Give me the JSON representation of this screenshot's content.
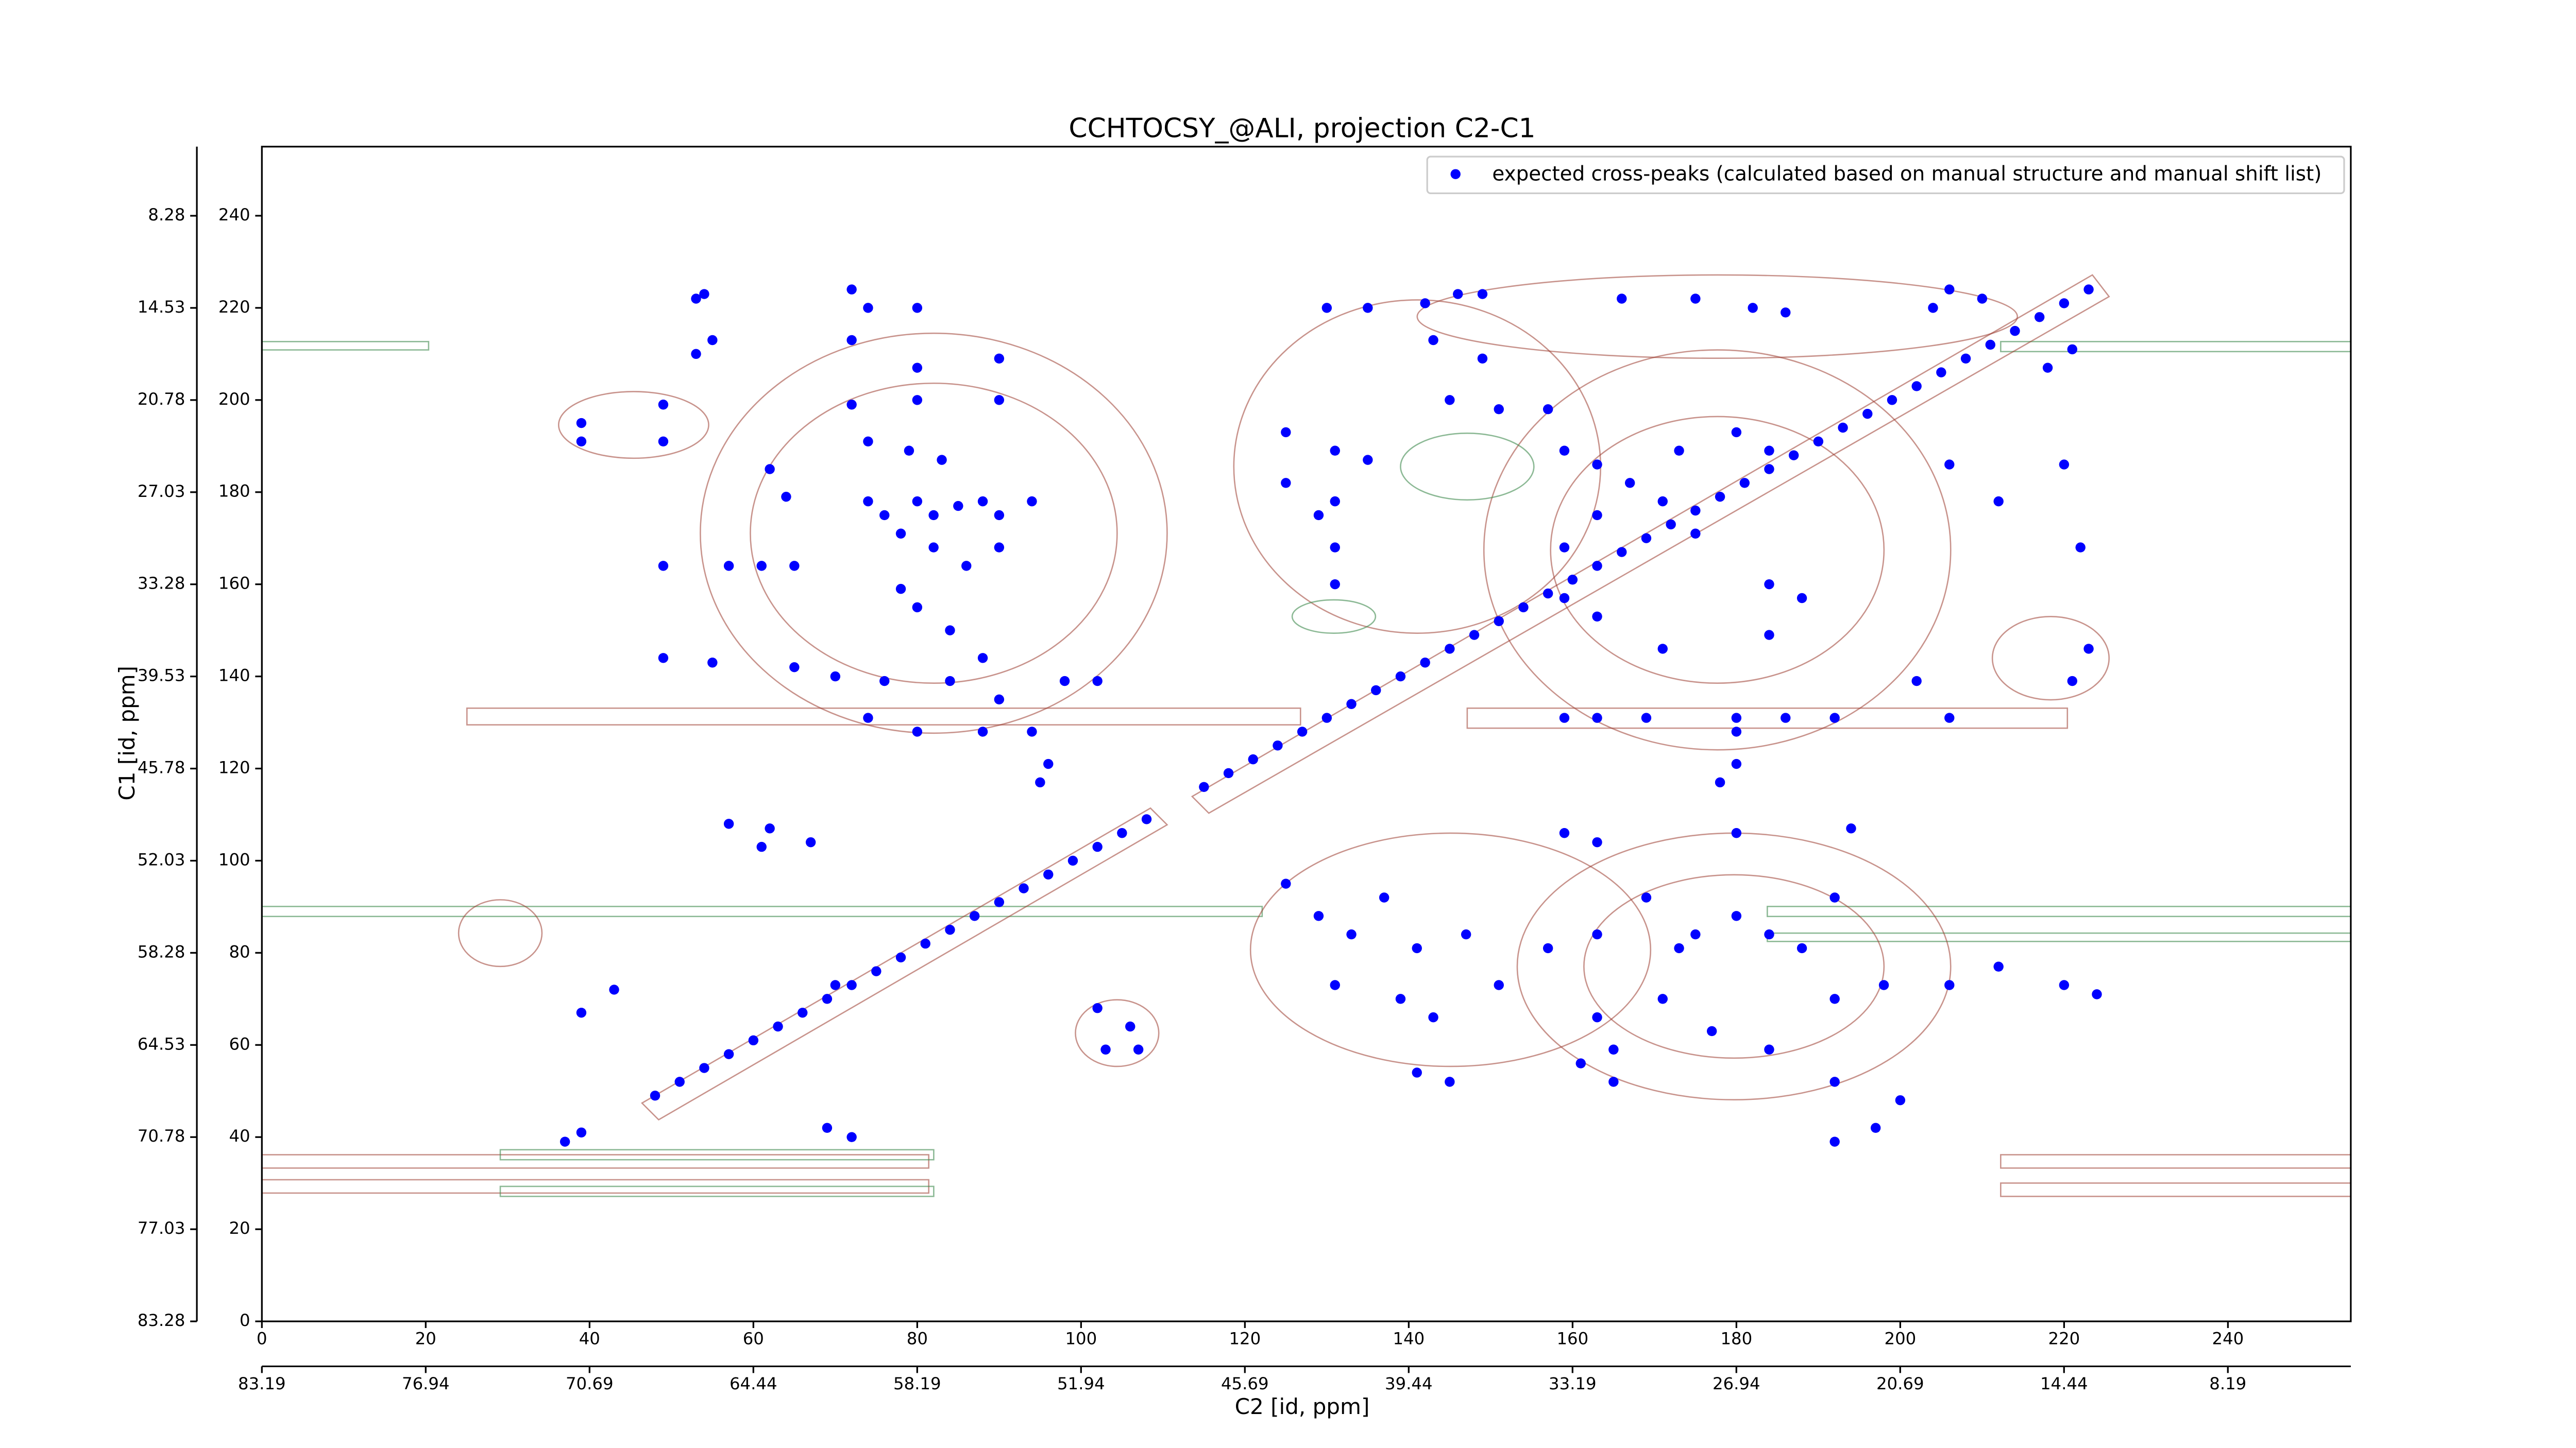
{
  "chart_data": {
    "type": "scatter",
    "title": "CCHTOCSY_@ALI, projection C2-C1",
    "x_label": "C2 [id, ppm]",
    "y_label": "C1 [id, ppm]",
    "xlim": [
      0,
      255
    ],
    "ylim": [
      0,
      255
    ],
    "xticks": [
      0,
      20,
      40,
      60,
      80,
      100,
      120,
      140,
      160,
      180,
      200,
      220,
      240
    ],
    "yticks": [
      0,
      20,
      40,
      60,
      80,
      100,
      120,
      140,
      160,
      180,
      200,
      220,
      240
    ],
    "x2lim": [
      83.19,
      3.5
    ],
    "x2ticks": [
      83.19,
      76.94,
      70.69,
      64.44,
      58.19,
      51.94,
      45.69,
      39.44,
      33.19,
      26.94,
      20.69,
      14.44,
      8.19
    ],
    "y2lim": [
      83.28,
      3.59
    ],
    "y2ticks": [
      83.28,
      77.03,
      70.78,
      64.53,
      58.28,
      52.03,
      45.78,
      39.53,
      33.28,
      27.03,
      20.78,
      14.53,
      8.28
    ],
    "legend": "upper right",
    "series": [
      {
        "name": "expected cross-peaks (calculated based on manual structure and manual shift list)",
        "color": "#0000ff",
        "x": [
          53,
          54,
          55,
          53,
          49,
          49,
          39,
          39,
          72,
          74,
          80,
          72,
          72,
          80,
          80,
          90,
          90,
          74,
          79,
          83,
          62,
          64,
          74,
          76,
          80,
          82,
          85,
          88,
          90,
          78,
          82,
          86,
          90,
          94,
          49,
          57,
          61,
          65,
          78,
          80,
          84,
          88,
          49,
          55,
          65,
          70,
          76,
          84,
          90,
          98,
          102,
          74,
          80,
          88,
          94,
          95,
          96,
          57,
          62,
          67,
          61,
          39,
          43,
          70,
          69,
          72,
          102,
          106,
          103,
          107,
          130,
          135,
          142,
          146,
          149,
          143,
          149,
          145,
          151,
          157,
          125,
          131,
          135,
          131,
          131,
          131,
          125,
          129,
          159,
          163,
          167,
          163,
          159,
          171,
          175,
          184,
          173,
          180,
          184,
          166,
          175,
          182,
          186,
          204,
          206,
          210,
          218,
          221,
          206,
          212,
          220,
          222,
          221,
          223,
          159,
          163,
          169,
          180,
          186,
          192,
          180,
          180,
          178,
          202,
          206,
          159,
          163,
          171,
          184,
          188,
          125,
          129,
          133,
          137,
          141,
          147,
          131,
          139,
          143,
          151,
          157,
          163,
          169,
          173,
          175,
          180,
          184,
          188,
          192,
          171,
          177,
          184,
          192,
          198,
          159,
          163,
          180,
          194,
          206,
          212,
          220,
          224,
          161,
          165,
          192,
          200,
          192,
          197,
          141,
          145,
          163,
          165,
          37,
          39,
          48,
          51,
          54,
          57,
          60,
          63,
          66,
          69,
          72,
          75,
          78,
          81,
          84,
          87,
          90,
          93,
          96,
          99,
          102,
          105,
          108,
          115,
          118,
          121,
          124,
          127,
          130,
          133,
          136,
          139,
          142,
          145,
          148,
          151,
          154,
          157,
          160,
          163,
          166,
          169,
          172,
          175,
          178,
          181,
          184,
          187,
          190,
          193,
          196,
          199,
          202,
          205,
          208,
          211,
          214,
          217,
          220,
          223
        ],
        "values": [
          222,
          223,
          213,
          210,
          199,
          191,
          191,
          195,
          224,
          220,
          220,
          213,
          199,
          207,
          200,
          209,
          200,
          191,
          189,
          187,
          185,
          179,
          178,
          175,
          178,
          175,
          177,
          178,
          175,
          171,
          168,
          164,
          168,
          178,
          164,
          164,
          164,
          164,
          159,
          155,
          150,
          144,
          144,
          143,
          142,
          140,
          139,
          139,
          135,
          139,
          139,
          131,
          128,
          128,
          128,
          117,
          121,
          108,
          107,
          104,
          103,
          67,
          72,
          73,
          42,
          40,
          68,
          64,
          59,
          59,
          220,
          220,
          221,
          223,
          223,
          213,
          209,
          200,
          198,
          198,
          193,
          189,
          187,
          178,
          168,
          160,
          182,
          175,
          189,
          186,
          182,
          175,
          168,
          178,
          171,
          160,
          189,
          193,
          189,
          222,
          222,
          220,
          219,
          220,
          224,
          222,
          207,
          211,
          186,
          178,
          186,
          168,
          139,
          146,
          131,
          131,
          131,
          131,
          131,
          131,
          128,
          121,
          117,
          139,
          131,
          157,
          153,
          146,
          149,
          157,
          95,
          88,
          84,
          92,
          81,
          84,
          73,
          70,
          66,
          73,
          81,
          84,
          92,
          81,
          84,
          88,
          84,
          81,
          92,
          70,
          63,
          59,
          70,
          73,
          106,
          104,
          106,
          107,
          73,
          77,
          73,
          71,
          56,
          52,
          52,
          48,
          39,
          42,
          54,
          52,
          66,
          59,
          39,
          41,
          49,
          52,
          55,
          58,
          61,
          64,
          67,
          70,
          73,
          76,
          79,
          82,
          85,
          88,
          91,
          94,
          97,
          100,
          103,
          106,
          109,
          116,
          119,
          122,
          125,
          128,
          131,
          134,
          137,
          140,
          143,
          146,
          149,
          152,
          155,
          158,
          161,
          164,
          167,
          170,
          173,
          176,
          179,
          182,
          185,
          188,
          191,
          194,
          197,
          200,
          203,
          206,
          209,
          212,
          215,
          218,
          221,
          224
        ]
      }
    ]
  }
}
